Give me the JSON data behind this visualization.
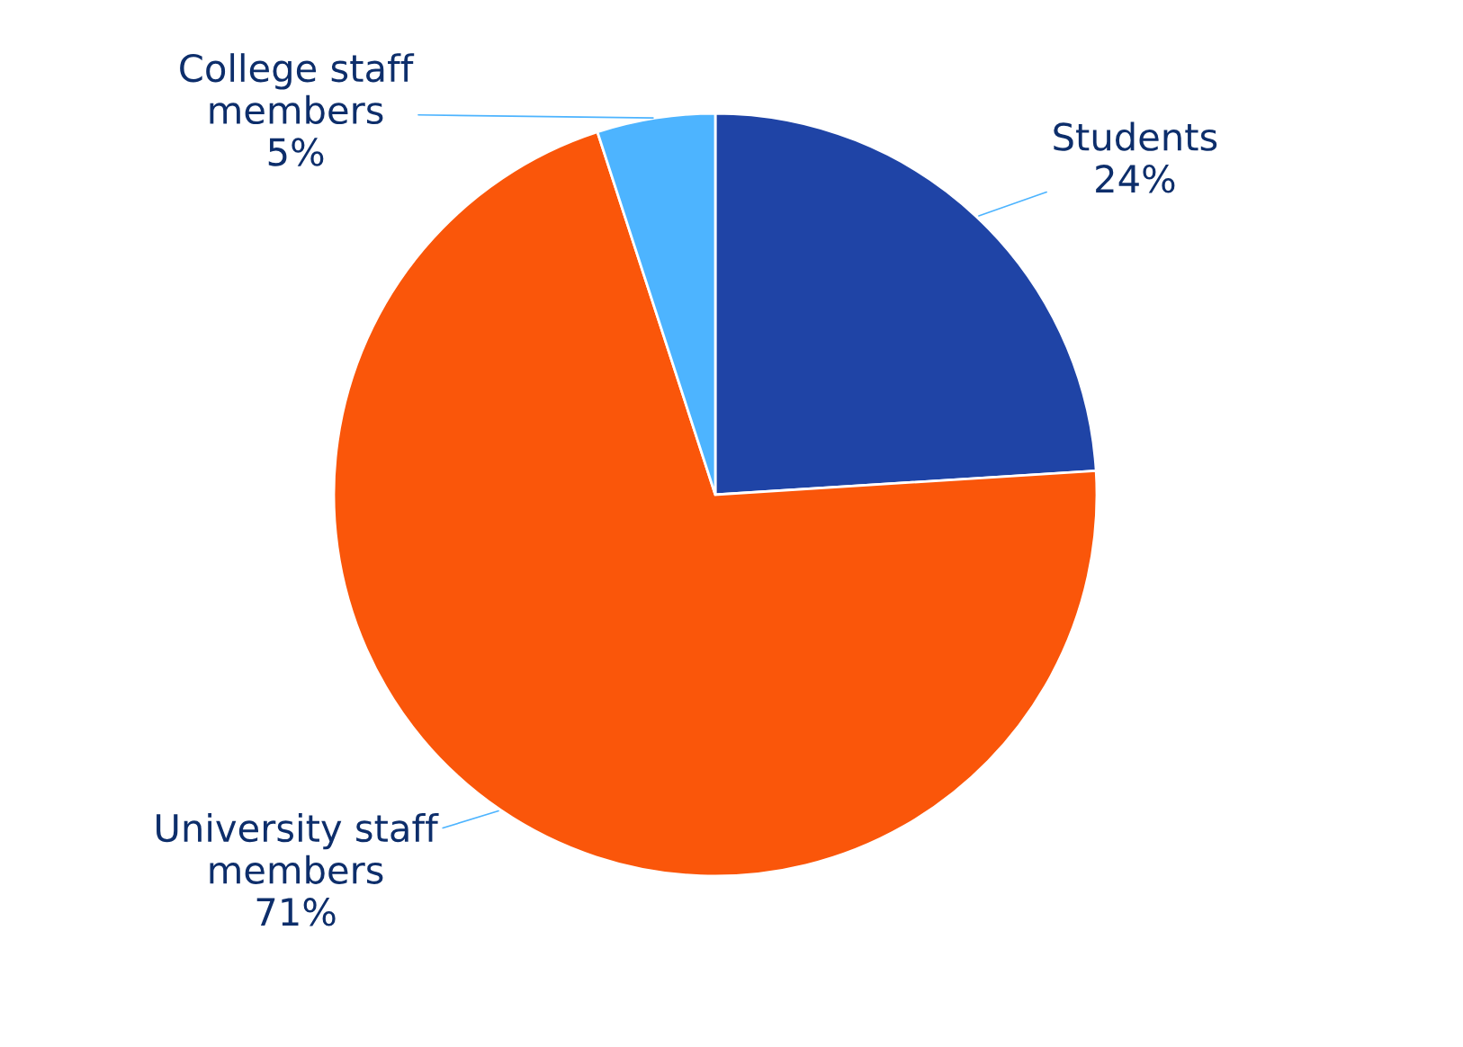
{
  "chart_data": {
    "type": "pie",
    "categories": [
      "Students",
      "University staff members",
      "College staff members"
    ],
    "values": [
      24,
      71,
      5
    ],
    "colors": [
      "#1f44a6",
      "#fa560a",
      "#4db4ff"
    ],
    "value_labels": [
      "24%",
      "71%",
      "5%"
    ]
  }
}
